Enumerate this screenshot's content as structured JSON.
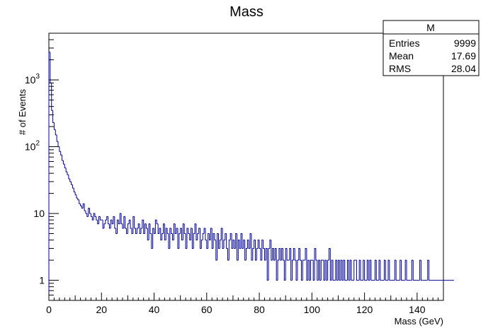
{
  "chart_data": {
    "type": "histogram",
    "title": "Mass",
    "xlabel": "Mass (GeV)",
    "ylabel": "# of Events",
    "xlim": [
      0,
      150
    ],
    "ylim": [
      0.5,
      5000
    ],
    "y_scale": "log",
    "grid": false,
    "line_color": "#00009a",
    "x_ticks": [
      0,
      20,
      40,
      60,
      80,
      100,
      120,
      140
    ],
    "y_ticks": [
      {
        "value": 1,
        "label": "1"
      },
      {
        "value": 10,
        "label": "10"
      },
      {
        "value": 100,
        "label": "10",
        "exp": "2"
      },
      {
        "value": 1000,
        "label": "10",
        "exp": "3"
      }
    ],
    "bin_width": 0.5,
    "bins_start": 0,
    "stats_box": {
      "title": "M",
      "rows": [
        {
          "label": "Entries",
          "value": "9999"
        },
        {
          "label": "Mean",
          "value": "17.69"
        },
        {
          "label": "RMS",
          "value": "28.04"
        }
      ]
    },
    "values": [
      2600,
      900,
      350,
      230,
      180,
      150,
      120,
      100,
      85,
      75,
      62,
      55,
      48,
      42,
      38,
      33,
      30,
      27,
      24,
      21,
      19,
      17,
      16,
      14,
      13,
      12,
      14,
      11,
      10,
      9,
      12,
      10,
      9,
      8,
      10,
      9,
      8,
      7,
      9,
      8,
      8,
      6,
      7,
      8,
      9,
      7,
      6,
      8,
      7,
      9,
      6,
      5,
      8,
      7,
      10,
      7,
      6,
      9,
      6,
      5,
      7,
      8,
      6,
      5,
      9,
      6,
      5,
      6,
      7,
      5,
      6,
      8,
      5,
      7,
      6,
      4,
      7,
      5,
      3,
      6,
      5,
      8,
      7,
      5,
      6,
      4,
      5,
      7,
      4,
      6,
      5,
      3,
      6,
      5,
      4,
      7,
      5,
      6,
      3,
      5,
      6,
      4,
      7,
      5,
      3,
      6,
      5,
      4,
      6,
      3,
      5,
      7,
      4,
      5,
      6,
      3,
      4,
      5,
      6,
      4,
      3,
      5,
      4,
      6,
      3,
      5,
      4,
      2,
      5,
      3,
      4,
      6,
      3,
      4,
      5,
      3,
      2,
      4,
      5,
      3,
      4,
      3,
      5,
      2,
      4,
      3,
      5,
      3,
      4,
      2,
      3,
      4,
      3,
      5,
      2,
      3,
      4,
      2,
      3,
      4,
      3,
      2,
      4,
      3,
      2,
      3,
      1,
      3,
      4,
      2,
      3,
      2,
      3,
      1,
      2,
      3,
      2,
      3,
      2,
      1,
      3,
      2,
      2,
      3,
      1,
      2,
      3,
      2,
      1,
      2,
      3,
      2,
      1,
      2,
      2,
      3,
      1,
      2,
      1,
      2,
      2,
      1,
      3,
      2,
      1,
      2,
      1,
      2,
      2,
      1,
      2,
      1,
      2,
      3,
      1,
      2,
      1,
      1,
      2,
      1,
      2,
      1,
      2,
      1,
      2,
      1,
      1,
      2,
      1,
      2,
      1,
      1,
      2,
      2,
      1,
      1,
      2,
      1,
      1,
      2,
      1,
      1,
      2,
      1,
      2,
      1,
      1,
      1,
      2,
      1,
      1,
      2,
      1,
      1,
      1,
      2,
      1,
      1,
      2,
      1,
      1,
      1,
      1,
      2,
      1,
      1,
      1,
      2,
      1,
      1,
      1,
      2,
      1,
      1,
      1,
      1,
      2,
      1,
      1,
      1,
      1,
      1,
      2,
      1,
      1,
      1,
      1,
      1,
      2,
      1,
      1,
      1,
      1,
      1,
      1,
      1,
      1,
      1,
      1,
      1,
      1,
      1,
      1,
      1,
      1,
      1,
      1,
      1
    ]
  }
}
